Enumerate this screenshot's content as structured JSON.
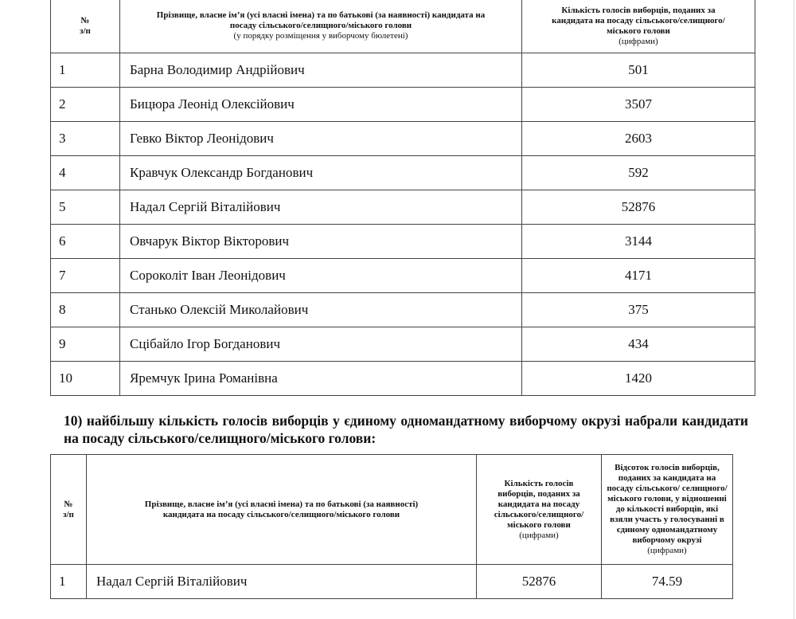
{
  "table1": {
    "headers": {
      "num": "№",
      "num_sub": "з/п",
      "name": "Прізвище, власне ім’я (усі власні імена) та по батькові (за наявності) кандидата на посаду сільського/селищного/міського голови",
      "name_note": "(у порядку розміщення у виборчому бюлетені)",
      "votes": "Кількість голосів виборців, поданих за кандидата на посаду сільського/селищного/міського голови",
      "votes_note": "(цифрами)"
    },
    "rows": [
      {
        "num": "1",
        "name": "Барна Володимир Андрійович",
        "votes": "501"
      },
      {
        "num": "2",
        "name": "Бицюра Леонід Олексійович",
        "votes": "3507"
      },
      {
        "num": "3",
        "name": "Гевко Віктор Леонідович",
        "votes": "2603"
      },
      {
        "num": "4",
        "name": "Кравчук Олександр Богданович",
        "votes": "592"
      },
      {
        "num": "5",
        "name": "Надал Сергій Віталійович",
        "votes": "52876"
      },
      {
        "num": "6",
        "name": "Овчарук Віктор Вікторович",
        "votes": "3144"
      },
      {
        "num": "7",
        "name": "Сороколіт Іван Леонідович",
        "votes": "4171"
      },
      {
        "num": "8",
        "name": "Станько Олексій Миколайович",
        "votes": "375"
      },
      {
        "num": "9",
        "name": "Сцібайло Ігор Богданович",
        "votes": "434"
      },
      {
        "num": "10",
        "name": "Яремчук Ірина Романівна",
        "votes": "1420"
      }
    ]
  },
  "heading": "10) найбільшу кількість голосів виборців у єдиному одномандатному виборчому окрузі набрали кандидати на посаду сільського/селищного/міського голови:",
  "table2": {
    "headers": {
      "num": "№",
      "num_sub": "з/п",
      "name": "Прізвище, власне ім’я (усі власні імена) та по батькові (за наявності) кандидата на посаду сільського/селищного/міського голови",
      "votes": "Кількість голосів виборців, поданих за кандидата на посаду сільського/селищного/ міського голови",
      "votes_note": "(цифрами)",
      "percent": "Відсоток голосів виборців, поданих за кандидата на посаду сільського/ селищного/міського голови, у відношенні до кількості виборців, які взяли участь у голосуванні в єдиному одномандатному виборчому окрузі",
      "percent_note": "(цифрами)"
    },
    "rows": [
      {
        "num": "1",
        "name": "Надал Сергій Віталійович",
        "votes": "52876",
        "percent": "74.59"
      }
    ]
  }
}
